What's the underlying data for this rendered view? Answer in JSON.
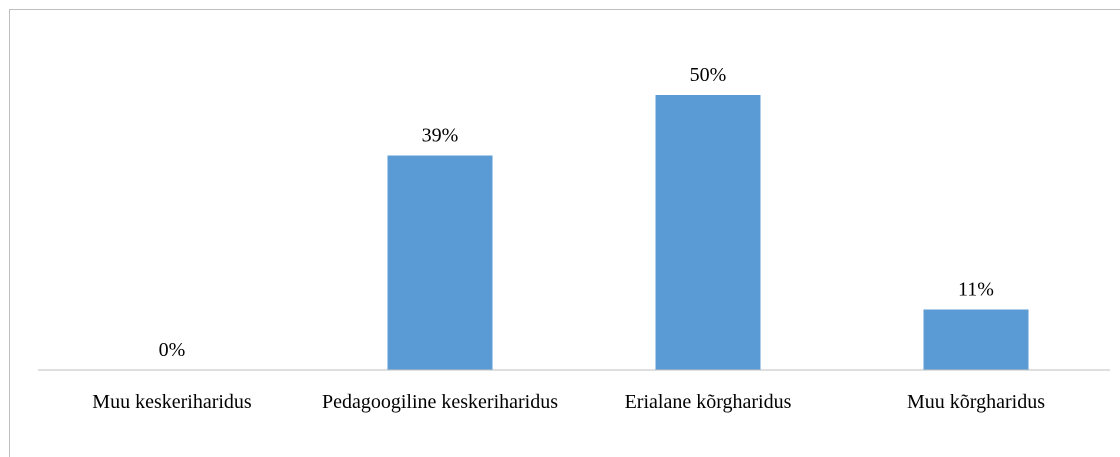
{
  "chart_data": {
    "type": "bar",
    "categories": [
      "Muu keskeriharidus",
      "Pedagoogiline keskeriharidus",
      "Erialane kõrgharidus",
      "Muu kõrgharidus"
    ],
    "values": [
      0,
      39,
      50,
      11
    ],
    "value_labels": [
      "0%",
      "39%",
      "50%",
      "11%"
    ],
    "color": "#5b9bd5"
  }
}
